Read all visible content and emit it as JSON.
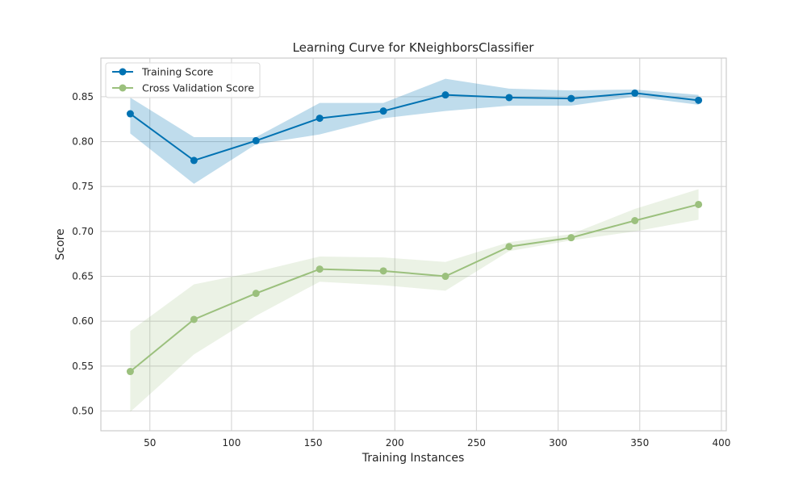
{
  "chart_data": {
    "type": "line",
    "title": "Learning Curve for KNeighborsClassifier",
    "xlabel": "Training Instances",
    "ylabel": "Score",
    "xlim": [
      20,
      403
    ],
    "ylim": [
      0.478,
      0.893
    ],
    "xticks": [
      50,
      100,
      150,
      200,
      250,
      300,
      350,
      400
    ],
    "yticks": [
      0.5,
      0.55,
      0.6,
      0.65,
      0.7,
      0.75,
      0.8,
      0.85
    ],
    "grid": true,
    "legend_position": "top-left",
    "x": [
      38,
      77,
      115,
      154,
      193,
      231,
      270,
      308,
      347,
      386
    ],
    "series": [
      {
        "name": "Training Score",
        "color": "#0072b2",
        "values": [
          0.831,
          0.779,
          0.801,
          0.826,
          0.834,
          0.852,
          0.849,
          0.848,
          0.854,
          0.846
        ],
        "band_lower": [
          0.809,
          0.753,
          0.797,
          0.808,
          0.826,
          0.834,
          0.84,
          0.84,
          0.85,
          0.841
        ],
        "band_upper": [
          0.849,
          0.805,
          0.805,
          0.843,
          0.843,
          0.87,
          0.859,
          0.857,
          0.858,
          0.852
        ]
      },
      {
        "name": "Cross Validation Score",
        "color": "#9bc07d",
        "values": [
          0.544,
          0.602,
          0.631,
          0.658,
          0.656,
          0.65,
          0.683,
          0.693,
          0.712,
          0.73
        ],
        "band_lower": [
          0.499,
          0.563,
          0.606,
          0.644,
          0.64,
          0.634,
          0.678,
          0.69,
          0.7,
          0.713
        ],
        "band_upper": [
          0.589,
          0.641,
          0.655,
          0.672,
          0.671,
          0.666,
          0.688,
          0.697,
          0.725,
          0.747
        ]
      }
    ]
  }
}
